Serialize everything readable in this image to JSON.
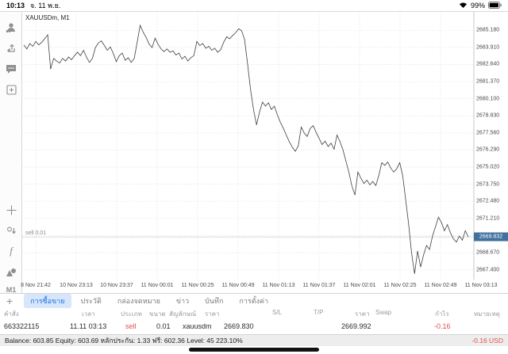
{
  "status_bar": {
    "time": "10:13",
    "date": "จ. 11 พ.ย.",
    "battery": "99%"
  },
  "sidebar": {
    "top_icons": [
      "account-icon",
      "share-trade-icon",
      "chat-icon",
      "new-window-icon"
    ],
    "bottom_icons": [
      "crosshair-icon",
      "trade-levels-icon",
      "indicators-function-icon",
      "objects-icon"
    ],
    "timeframe": "M1"
  },
  "chart": {
    "symbol_label": "XAUUSDm, M1",
    "position_label": "sell 0.01",
    "current_price_badge": "2669.832",
    "badge_color": "#41719f",
    "line_color": "#3f3f3f",
    "grid_color": "#dcdcdc"
  },
  "chart_data": {
    "type": "line",
    "title": "XAUUSDm, M1",
    "xlabel": "",
    "ylabel": "",
    "x_tick_labels": [
      "8 Nov 21:42",
      "10 Nov 23:13",
      "10 Nov 23:37",
      "11 Nov 00:01",
      "11 Nov 00:25",
      "11 Nov 00:49",
      "11 Nov 01:13",
      "11 Nov 01:37",
      "11 Nov 02:01",
      "11 Nov 02:25",
      "11 Nov 02:49",
      "11 Nov 03:13"
    ],
    "y_tick_labels": [
      "2685.180",
      "2683.910",
      "2682.640",
      "2681.370",
      "2680.100",
      "2678.830",
      "2677.560",
      "2676.290",
      "2675.020",
      "2673.750",
      "2672.480",
      "2671.210",
      "2668.670",
      "2667.400"
    ],
    "ylim": [
      2666.9,
      2686.4
    ],
    "grid": true,
    "current_price": 2669.832,
    "position_line": {
      "type": "sell",
      "volume": "0.01",
      "price": 2669.83
    },
    "values": [
      2684.1,
      2683.8,
      2684.2,
      2684.0,
      2684.35,
      2684.1,
      2684.3,
      2684.55,
      2684.85,
      2682.3,
      2683.1,
      2682.9,
      2682.75,
      2683.1,
      2682.9,
      2683.2,
      2683.0,
      2683.3,
      2683.55,
      2683.3,
      2683.7,
      2683.2,
      2682.8,
      2683.1,
      2683.9,
      2684.25,
      2684.4,
      2684.05,
      2683.7,
      2683.95,
      2683.45,
      2682.85,
      2683.3,
      2683.5,
      2682.95,
      2683.15,
      2682.8,
      2683.1,
      2684.3,
      2685.55,
      2685.05,
      2684.65,
      2684.15,
      2683.9,
      2684.6,
      2684.15,
      2683.8,
      2683.6,
      2683.8,
      2683.55,
      2683.65,
      2683.35,
      2683.5,
      2683.05,
      2683.25,
      2682.9,
      2683.15,
      2683.3,
      2684.35,
      2684.05,
      2684.2,
      2683.85,
      2684.0,
      2683.7,
      2683.85,
      2683.55,
      2683.75,
      2684.3,
      2684.7,
      2684.55,
      2684.8,
      2685.0,
      2685.3,
      2685.15,
      2684.5,
      2682.7,
      2680.8,
      2679.3,
      2678.15,
      2679.1,
      2679.85,
      2679.55,
      2679.8,
      2679.3,
      2679.55,
      2678.9,
      2678.35,
      2677.9,
      2677.4,
      2676.9,
      2676.5,
      2676.2,
      2676.6,
      2678.0,
      2677.55,
      2677.3,
      2677.9,
      2678.1,
      2677.6,
      2677.15,
      2676.7,
      2676.95,
      2676.55,
      2676.8,
      2676.35,
      2677.4,
      2676.9,
      2676.3,
      2675.45,
      2674.6,
      2673.6,
      2672.95,
      2674.65,
      2674.2,
      2673.8,
      2674.05,
      2673.7,
      2673.95,
      2673.65,
      2674.4,
      2675.35,
      2675.15,
      2675.4,
      2674.95,
      2674.65,
      2674.9,
      2675.35,
      2674.4,
      2672.6,
      2670.8,
      2668.6,
      2667.1,
      2668.8,
      2667.6,
      2668.5,
      2669.2,
      2668.9,
      2669.9,
      2670.6,
      2671.3,
      2670.9,
      2670.3,
      2670.75,
      2670.15,
      2669.7,
      2669.45,
      2669.9,
      2669.6,
      2670.3,
      2669.832
    ]
  },
  "tabs": {
    "add_label": "+",
    "items": [
      {
        "label": "การซื้อขาย",
        "active": true
      },
      {
        "label": "ประวัติ",
        "active": false
      },
      {
        "label": "กล่องจดหมาย",
        "active": false
      },
      {
        "label": "ข่าว",
        "active": false
      },
      {
        "label": "บันทึก",
        "active": false
      },
      {
        "label": "การตั้งค่า",
        "active": false
      }
    ]
  },
  "trade_table": {
    "headers": [
      "คำสั่ง",
      "เวลา",
      "ประเภท",
      "ขนาด",
      "สัญลักษณ์",
      "ราคา",
      "S/L",
      "T/P",
      "ราคา",
      "Swap",
      "กำไร",
      "หมายเหตุ"
    ],
    "row": {
      "order": "663322115",
      "time": "11.11 03:13",
      "type": "sell",
      "volume": "0.01",
      "symbol": "xauusdm",
      "open_price": "2669.830",
      "current_price": "2669.992",
      "profit": "-0.16"
    }
  },
  "account_bar": {
    "summary": "Balance: 603.85 Equity: 603.69 หลักประกัน: 1.33 ฟรี: 602.36 Level: 45 223.10%",
    "profit": "-0.16  USD"
  }
}
